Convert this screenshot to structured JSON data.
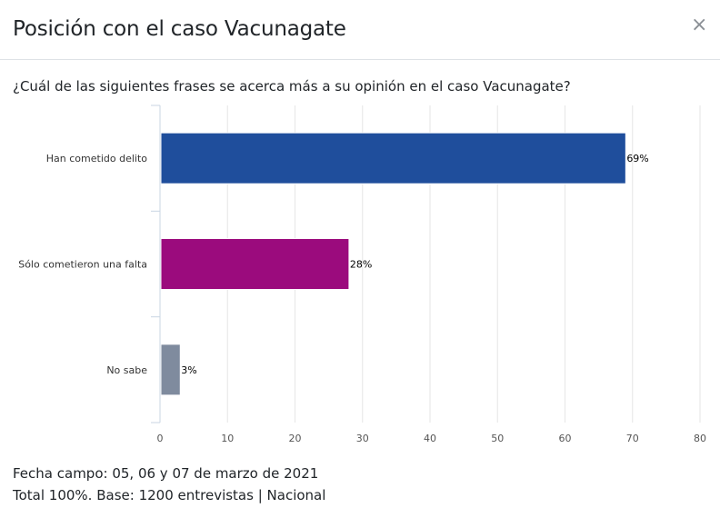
{
  "modal": {
    "title": "Posición con el caso Vacunagate",
    "close_glyph": "×"
  },
  "question": "¿Cuál de las siguientes frases se acerca más a su opinión en el caso Vacunagate?",
  "footer": {
    "line1": "Fecha campo: 05, 06 y 07 de marzo de 2021",
    "line2": "Total 100%. Base: 1200 entrevistas | Nacional"
  },
  "chart_data": {
    "type": "bar",
    "orientation": "horizontal",
    "categories": [
      "Han cometido delito",
      "Sólo cometieron una falta",
      "No sabe"
    ],
    "values": [
      69,
      28,
      3
    ],
    "data_labels": [
      "69%",
      "28%",
      "3%"
    ],
    "colors": [
      "#1f4e9c",
      "#9b0b7d",
      "#7f8b9e"
    ],
    "xlim": [
      0,
      80
    ],
    "xticks": [
      0,
      10,
      20,
      30,
      40,
      50,
      60,
      70,
      80
    ],
    "grid": true,
    "xlabel": "",
    "ylabel": ""
  }
}
